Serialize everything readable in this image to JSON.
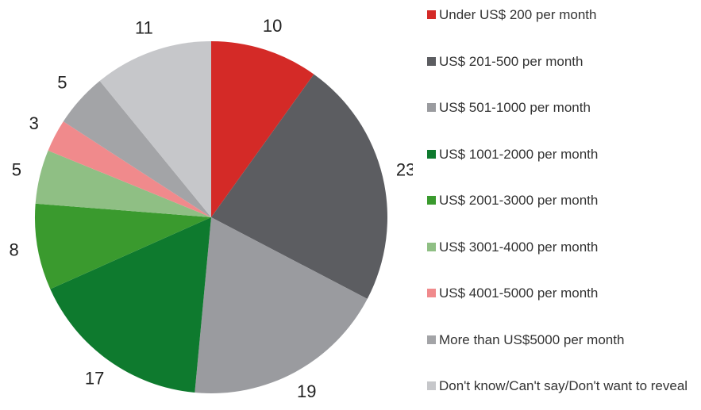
{
  "chart_data": {
    "type": "pie",
    "categories": [
      "Under US$ 200 per month",
      "US$ 201-500 per month",
      "US$ 501-1000 per month",
      "US$ 1001-2000 per month",
      "US$ 2001-3000 per month",
      "US$ 3001-4000 per month",
      "US$ 4001-5000 per month",
      "More than US$5000 per month",
      "Don't know/Can't say/Don't want to reveal"
    ],
    "values": [
      10,
      23,
      19,
      17,
      8,
      5,
      3,
      5,
      11
    ],
    "colors": [
      "#d42a27",
      "#5c5d61",
      "#9a9b9f",
      "#0e7a2e",
      "#3a9a2e",
      "#8fbf84",
      "#f08a8c",
      "#a3a4a7",
      "#c6c7ca"
    ],
    "legend": "right"
  }
}
